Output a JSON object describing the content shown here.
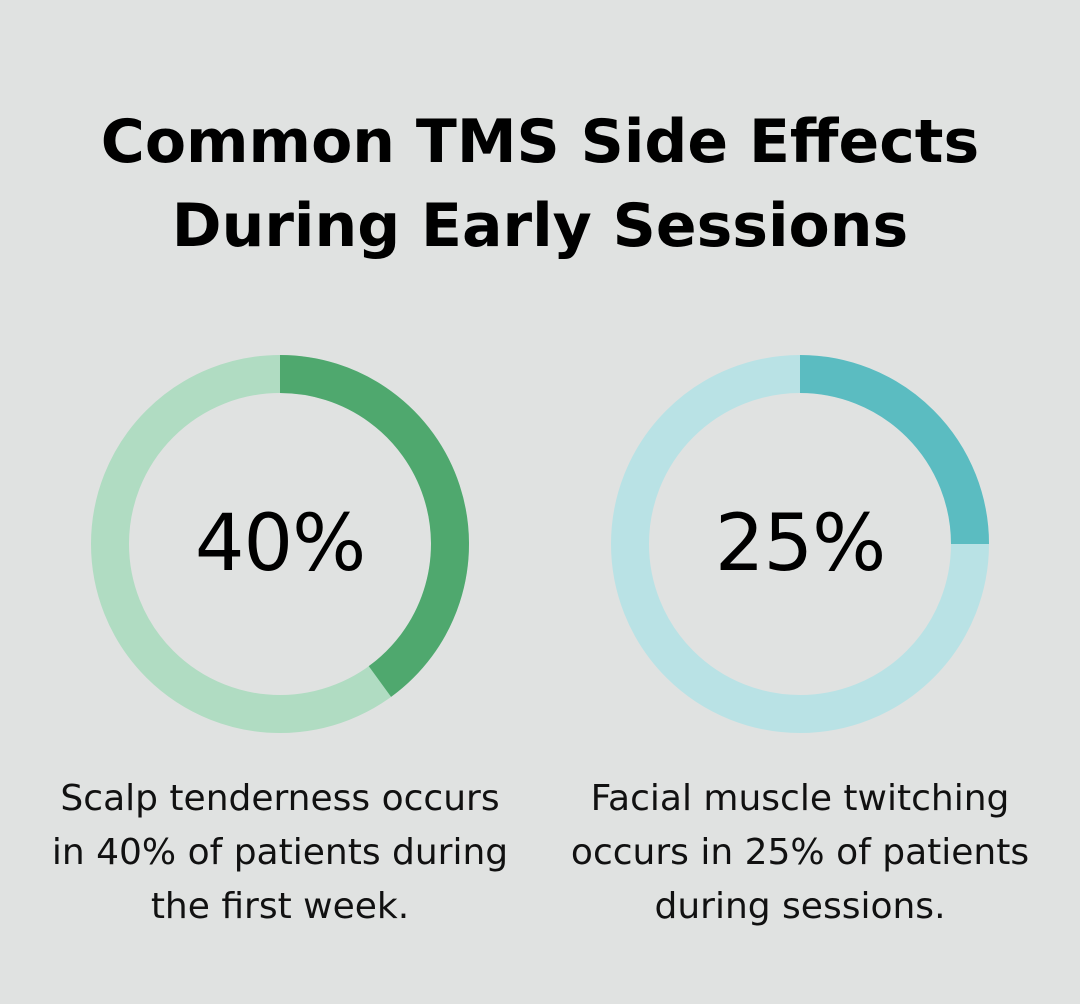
{
  "title": {
    "line1": "Common TMS Side Effects",
    "line2": "During Early Sessions"
  },
  "colors": {
    "background": "#e0e2e1",
    "green_fill": "#4fa86e",
    "green_track": "#b0dcc2",
    "teal_fill": "#5bbcc1",
    "teal_track": "#b9e2e5"
  },
  "chart_data": [
    {
      "type": "pie",
      "variant": "donut",
      "value_percent": 40,
      "center_label": "40%",
      "caption": {
        "line1": "Scalp tenderness occurs",
        "line2": "in 40% of patients during",
        "line3": "the first week."
      },
      "fill_color": "#4fa86e",
      "track_color": "#b0dcc2"
    },
    {
      "type": "pie",
      "variant": "donut",
      "value_percent": 25,
      "center_label": "25%",
      "caption": {
        "line1": "Facial muscle twitching",
        "line2": "occurs in 25% of patients",
        "line3": "during sessions."
      },
      "fill_color": "#5bbcc1",
      "track_color": "#b9e2e5"
    }
  ]
}
